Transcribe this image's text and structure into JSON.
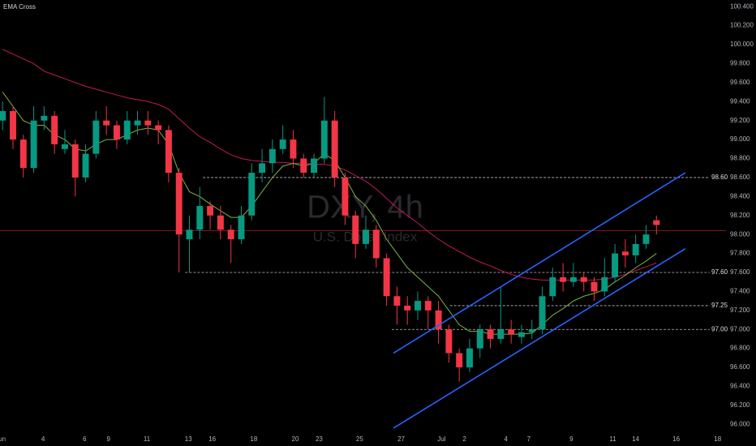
{
  "chart_data": {
    "type": "candlestick",
    "title": "EMA Cross",
    "watermark": "DXY, 4h",
    "watermark_subtitle": "U.S. Dollar Index",
    "up_color": "#089981",
    "down_color": "#f23645",
    "open": [
      99.2,
      99.3,
      99.0,
      98.7,
      99.2,
      99.25,
      98.9,
      98.95,
      98.6,
      98.85,
      99.2,
      99.15,
      99.0,
      99.15,
      99.2,
      99.15,
      99.1,
      98.65,
      97.95,
      98.05,
      98.3,
      98.2,
      98.05,
      97.95,
      98.2,
      98.65,
      98.75,
      98.9,
      99.0,
      98.8,
      98.65,
      98.8,
      99.2,
      98.6,
      98.2,
      97.9,
      98.05,
      97.75,
      97.35,
      97.25,
      97.2,
      97.3,
      97.2,
      97.0,
      96.75,
      96.6,
      96.8,
      97.0,
      96.9,
      97.0,
      96.92,
      96.97,
      97.0,
      97.35,
      97.55,
      97.5,
      97.55,
      97.5,
      97.4,
      97.55,
      97.82,
      97.78,
      97.9,
      98.15
    ],
    "high": [
      99.4,
      99.35,
      99.05,
      99.35,
      99.35,
      99.3,
      99.1,
      99.0,
      98.95,
      99.3,
      99.35,
      99.2,
      99.3,
      99.3,
      99.3,
      99.2,
      99.15,
      98.7,
      98.2,
      98.5,
      98.35,
      98.3,
      98.1,
      98.3,
      98.75,
      98.9,
      99.0,
      99.15,
      99.1,
      98.85,
      98.85,
      99.45,
      99.3,
      98.65,
      98.25,
      98.2,
      98.1,
      97.8,
      97.45,
      97.35,
      97.4,
      97.35,
      97.3,
      97.05,
      96.8,
      96.9,
      97.05,
      97.05,
      97.45,
      97.1,
      97.05,
      97.1,
      97.45,
      97.65,
      97.7,
      97.7,
      97.6,
      97.55,
      97.75,
      97.9,
      97.95,
      98.0,
      98.1,
      98.2
    ],
    "low": [
      99.1,
      98.9,
      98.6,
      98.65,
      99.1,
      98.85,
      98.85,
      98.4,
      98.55,
      98.8,
      99.05,
      98.9,
      98.95,
      99.05,
      99.05,
      98.95,
      98.55,
      97.6,
      97.6,
      97.95,
      98.05,
      97.95,
      97.7,
      97.9,
      98.15,
      98.55,
      98.65,
      98.85,
      98.7,
      98.6,
      98.6,
      98.75,
      98.5,
      98.1,
      97.75,
      97.85,
      97.65,
      97.25,
      97.05,
      97.05,
      97.1,
      97.0,
      96.85,
      96.65,
      96.45,
      96.55,
      96.7,
      96.8,
      96.85,
      96.85,
      96.85,
      96.9,
      96.95,
      97.3,
      97.4,
      97.45,
      97.4,
      97.3,
      97.35,
      97.5,
      97.65,
      97.7,
      97.85,
      98.0
    ],
    "close": [
      99.3,
      99.0,
      98.7,
      99.2,
      99.25,
      98.95,
      98.95,
      98.6,
      98.85,
      99.2,
      99.15,
      99.0,
      99.2,
      99.2,
      99.15,
      99.1,
      98.65,
      98.0,
      98.05,
      98.3,
      98.2,
      98.05,
      97.95,
      98.2,
      98.65,
      98.75,
      98.9,
      99.0,
      98.8,
      98.65,
      98.8,
      99.2,
      98.6,
      98.2,
      97.9,
      98.05,
      97.75,
      97.35,
      97.25,
      97.2,
      97.3,
      97.2,
      97.0,
      96.75,
      96.6,
      96.8,
      97.0,
      96.9,
      97.0,
      96.95,
      96.97,
      97.0,
      97.35,
      97.55,
      97.5,
      97.55,
      97.5,
      97.4,
      97.55,
      97.8,
      97.78,
      97.9,
      98.0,
      98.1
    ],
    "ema": [
      {
        "color": "#c2185b",
        "values": [
          99.95,
          99.9,
          99.85,
          99.8,
          99.72,
          99.68,
          99.64,
          99.6,
          99.56,
          99.53,
          99.5,
          99.47,
          99.44,
          99.42,
          99.4,
          99.37,
          99.32,
          99.22,
          99.12,
          99.03,
          98.97,
          98.9,
          98.84,
          98.8,
          98.78,
          98.77,
          98.76,
          98.76,
          98.75,
          98.75,
          98.74,
          98.74,
          98.72,
          98.68,
          98.62,
          98.56,
          98.48,
          98.38,
          98.28,
          98.2,
          98.12,
          98.03,
          97.95,
          97.88,
          97.82,
          97.76,
          97.71,
          97.67,
          97.62,
          97.58,
          97.55,
          97.53,
          97.52,
          97.52,
          97.52,
          97.52,
          97.52,
          97.52,
          97.53,
          97.55,
          97.58,
          97.62,
          97.66,
          97.7
        ]
      },
      {
        "color": "#7cb342",
        "values": [
          99.5,
          99.35,
          99.2,
          99.15,
          99.15,
          99.05,
          99.0,
          98.9,
          98.88,
          98.95,
          99.0,
          99.0,
          99.05,
          99.1,
          99.12,
          99.1,
          98.95,
          98.65,
          98.45,
          98.4,
          98.32,
          98.25,
          98.18,
          98.18,
          98.3,
          98.45,
          98.6,
          98.72,
          98.75,
          98.72,
          98.75,
          98.85,
          98.78,
          98.6,
          98.4,
          98.3,
          98.15,
          97.95,
          97.8,
          97.65,
          97.55,
          97.45,
          97.35,
          97.2,
          97.05,
          96.98,
          96.98,
          96.95,
          96.95,
          96.95,
          96.95,
          96.96,
          97.05,
          97.15,
          97.22,
          97.3,
          97.35,
          97.38,
          97.42,
          97.5,
          97.57,
          97.65,
          97.72,
          97.8
        ]
      }
    ],
    "channel": [
      {
        "color": "#2962ff",
        "x": [
          37.66,
          65.78
        ],
        "values": [
          96.75,
          98.65
        ]
      },
      {
        "color": "#2962ff",
        "x": [
          37.66,
          65.78
        ],
        "values": [
          95.96,
          97.85
        ]
      }
    ],
    "levels": [
      {
        "value": 98.6,
        "label": "98.60",
        "from": 19.3
      },
      {
        "value": 97.25,
        "from": 43.1
      },
      {
        "value": 97.6,
        "label": "97.60",
        "from": 17.6
      },
      {
        "value": 97.0,
        "label": "97.00",
        "from": 37.5
      }
    ],
    "price_line": {
      "value": 98.04,
      "color": "#f23645"
    },
    "ylim": [
      95.9,
      100.47
    ],
    "xlim": [
      -0.25,
      69.7
    ],
    "grid": false,
    "yticks": [
      {
        "value": 96.0,
        "label": "96.000"
      },
      {
        "value": 96.2,
        "label": "96.200"
      },
      {
        "value": 96.4,
        "label": "96.400"
      },
      {
        "value": 96.6,
        "label": "96.600"
      },
      {
        "value": 96.8,
        "label": "96.800"
      },
      {
        "value": 97.0,
        "label": "97.000"
      },
      {
        "value": 97.2,
        "label": "97.200"
      },
      {
        "value": 97.4,
        "label": "97.400"
      },
      {
        "value": 97.6,
        "label": "97.600"
      },
      {
        "value": 97.8,
        "label": "97.800"
      },
      {
        "value": 98.0,
        "label": "98.000"
      },
      {
        "value": 98.2,
        "label": "98.200"
      },
      {
        "value": 98.4,
        "label": "98.400"
      },
      {
        "value": 98.6,
        "label": "98.600"
      },
      {
        "value": 98.8,
        "label": "98.800"
      },
      {
        "value": 99.0,
        "label": "99.000"
      },
      {
        "value": 99.2,
        "label": "99.200"
      },
      {
        "value": 99.4,
        "label": "99.400"
      },
      {
        "value": 99.6,
        "label": "99.600"
      },
      {
        "value": 99.8,
        "label": "99.800"
      },
      {
        "value": 100.0,
        "label": "100.000"
      },
      {
        "value": 100.2,
        "label": "100.200"
      },
      {
        "value": 100.4,
        "label": "100.400"
      }
    ],
    "xticks": [
      {
        "value": -0.2,
        "label": "Jun"
      },
      {
        "value": 3.9,
        "label": "4"
      },
      {
        "value": 7.9,
        "label": "6"
      },
      {
        "value": 10.2,
        "label": "9"
      },
      {
        "value": 13.9,
        "label": "11"
      },
      {
        "value": 17.9,
        "label": "13"
      },
      {
        "value": 20.2,
        "label": "16"
      },
      {
        "value": 24.2,
        "label": "18"
      },
      {
        "value": 28.2,
        "label": "20"
      },
      {
        "value": 30.5,
        "label": "23"
      },
      {
        "value": 34.4,
        "label": "25"
      },
      {
        "value": 38.4,
        "label": "27"
      },
      {
        "value": 42.3,
        "label": "Jul"
      },
      {
        "value": 44.5,
        "label": "2"
      },
      {
        "value": 48.5,
        "label": "4"
      },
      {
        "value": 50.7,
        "label": "7"
      },
      {
        "value": 54.8,
        "label": "9"
      },
      {
        "value": 58.8,
        "label": "11"
      },
      {
        "value": 61.0,
        "label": "14"
      },
      {
        "value": 64.9,
        "label": "16"
      },
      {
        "value": 68.9,
        "label": "18"
      }
    ]
  }
}
